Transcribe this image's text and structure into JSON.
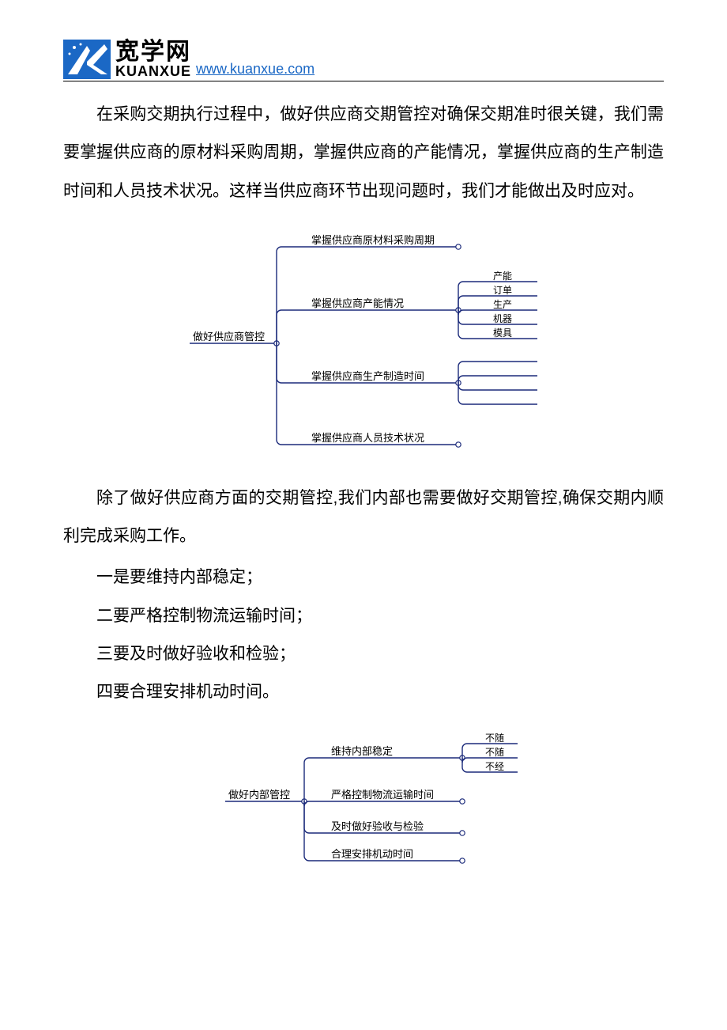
{
  "header": {
    "logo_cn": "宽学网",
    "logo_en": "KUANXUE",
    "url": "www.kuanxue.com"
  },
  "paragraphs": {
    "p1": "在采购交期执行过程中，做好供应商交期管控对确保交期准时很关键，我们需要掌握供应商的原材料采购周期，掌握供应商的产能情况，掌握供应商的生产制造时间和人员技术状况。这样当供应商环节出现问题时，我们才能做出及时应对。",
    "p2": "除了做好供应商方面的交期管控,我们内部也需要做好交期管控,确保交期内顺利完成采购工作。",
    "b1": "一是要维持内部稳定；",
    "b2": "二要严格控制物流运输时间；",
    "b3": "三要及时做好验收和检验；",
    "b4": "四要合理安排机动时间。"
  },
  "diagram1": {
    "type": "tree",
    "font_size": 13,
    "colors": {
      "line": "#1b2a7a",
      "text": "#000000",
      "node_fill": "#ffffff"
    },
    "root": "做好供应商管控",
    "branches": [
      {
        "label": "掌握供应商原材料采购周期",
        "leaves": []
      },
      {
        "label": "掌握供应商产能情况",
        "leaves": [
          "产能",
          "订单",
          "生产",
          "机器",
          "模具"
        ]
      },
      {
        "label": "掌握供应商生产制造时间",
        "leaves": [
          "",
          "",
          "",
          ""
        ]
      },
      {
        "label": "掌握供应商人员技术状况",
        "leaves": []
      }
    ]
  },
  "diagram2": {
    "type": "tree",
    "font_size": 13,
    "colors": {
      "line": "#1b2a7a",
      "text": "#000000",
      "node_fill": "#ffffff"
    },
    "root": "做好内部管控",
    "branches": [
      {
        "label": "维持内部稳定",
        "leaves": [
          "不随",
          "不随",
          "不经"
        ]
      },
      {
        "label": "严格控制物流运输时间",
        "leaves": []
      },
      {
        "label": "及时做好验收与检验",
        "leaves": []
      },
      {
        "label": "合理安排机动时间",
        "leaves": []
      }
    ]
  }
}
